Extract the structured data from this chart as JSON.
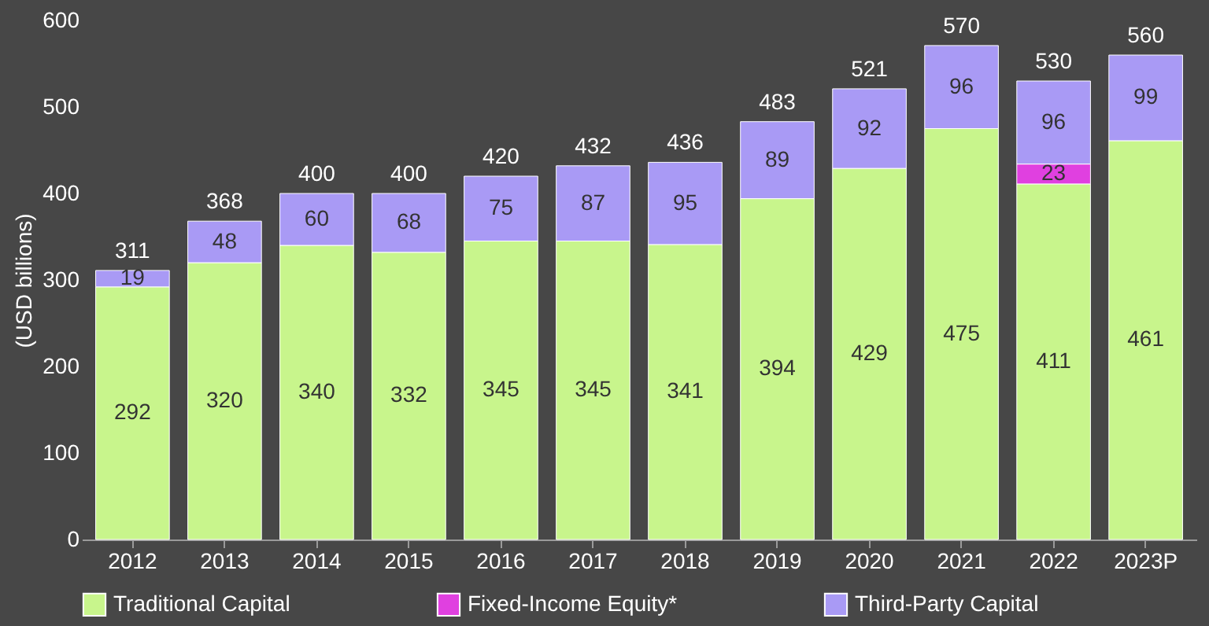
{
  "chart_data": {
    "type": "bar",
    "stacked": true,
    "ylabel": "(USD billions)",
    "categories": [
      "2012",
      "2013",
      "2014",
      "2015",
      "2016",
      "2017",
      "2018",
      "2019",
      "2020",
      "2021",
      "2022",
      "2023P"
    ],
    "series": [
      {
        "name": "Traditional Capital",
        "color": "#c8f58c",
        "values": [
          292,
          320,
          340,
          332,
          345,
          345,
          341,
          394,
          429,
          475,
          411,
          461
        ]
      },
      {
        "name": "Fixed-Income Equity*",
        "color": "#e040e0",
        "values": [
          null,
          null,
          null,
          null,
          null,
          null,
          null,
          null,
          null,
          null,
          23,
          null
        ]
      },
      {
        "name": "Third-Party Capital",
        "color": "#a99af5",
        "values": [
          19,
          48,
          60,
          68,
          75,
          87,
          95,
          89,
          92,
          96,
          96,
          99
        ]
      }
    ],
    "totals": [
      "311",
      "368",
      "400",
      "400",
      "420",
      "432",
      "436",
      "483",
      "521",
      "570",
      "530",
      "560"
    ],
    "ylim": [
      0,
      600
    ],
    "yticks": [
      0,
      100,
      200,
      300,
      400,
      500,
      600
    ],
    "data_labels": true,
    "grid": false,
    "legend": "bottom"
  }
}
